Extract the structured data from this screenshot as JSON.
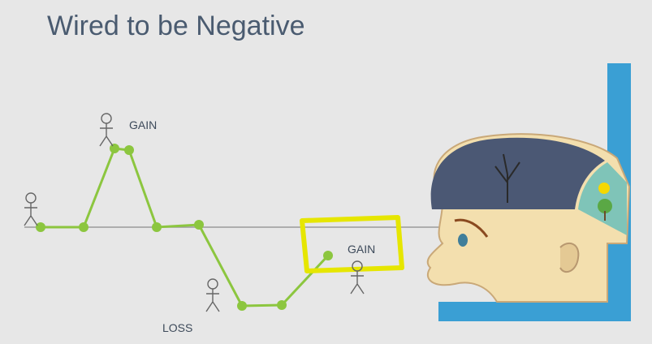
{
  "header": {
    "title": "Wired to be Negative"
  },
  "labels": {
    "gain_top": "GAIN",
    "gain_right": "GAIN",
    "loss": "LOSS"
  }
}
